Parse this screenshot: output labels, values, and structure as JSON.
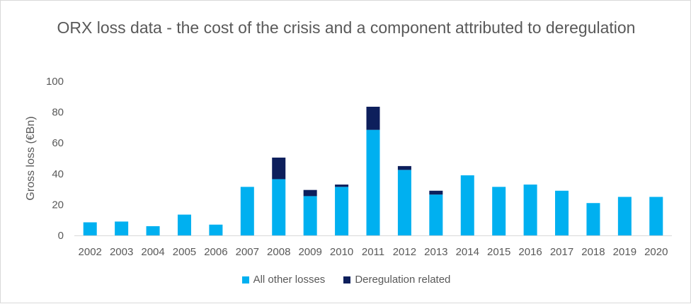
{
  "chart_data": {
    "type": "bar",
    "stacked": true,
    "title": "ORX loss data - the cost of the crisis and a component attributed to deregulation",
    "ylabel": "Gross loss (€Bn)",
    "xlabel": "",
    "ylim": [
      0,
      100
    ],
    "yticks": [
      0,
      20,
      40,
      60,
      80,
      100
    ],
    "grid": false,
    "legend_position": "bottom",
    "categories": [
      "2002",
      "2003",
      "2004",
      "2005",
      "2006",
      "2007",
      "2008",
      "2009",
      "2010",
      "2011",
      "2012",
      "2013",
      "2014",
      "2015",
      "2016",
      "2017",
      "2018",
      "2019",
      "2020"
    ],
    "series": [
      {
        "name": "All other losses",
        "color": "#00b0f0",
        "values": [
          8.5,
          9,
          6,
          13.5,
          7,
          31.5,
          36.5,
          25.5,
          31.5,
          68.5,
          42.5,
          26.5,
          39,
          31.5,
          33,
          29,
          21,
          25,
          25
        ]
      },
      {
        "name": "Deregulation related",
        "color": "#0d1f5c",
        "values": [
          0,
          0,
          0,
          0,
          0,
          0,
          14,
          4,
          1.5,
          15,
          2.5,
          2.5,
          0,
          0,
          0,
          0,
          0,
          0,
          0
        ]
      }
    ]
  }
}
